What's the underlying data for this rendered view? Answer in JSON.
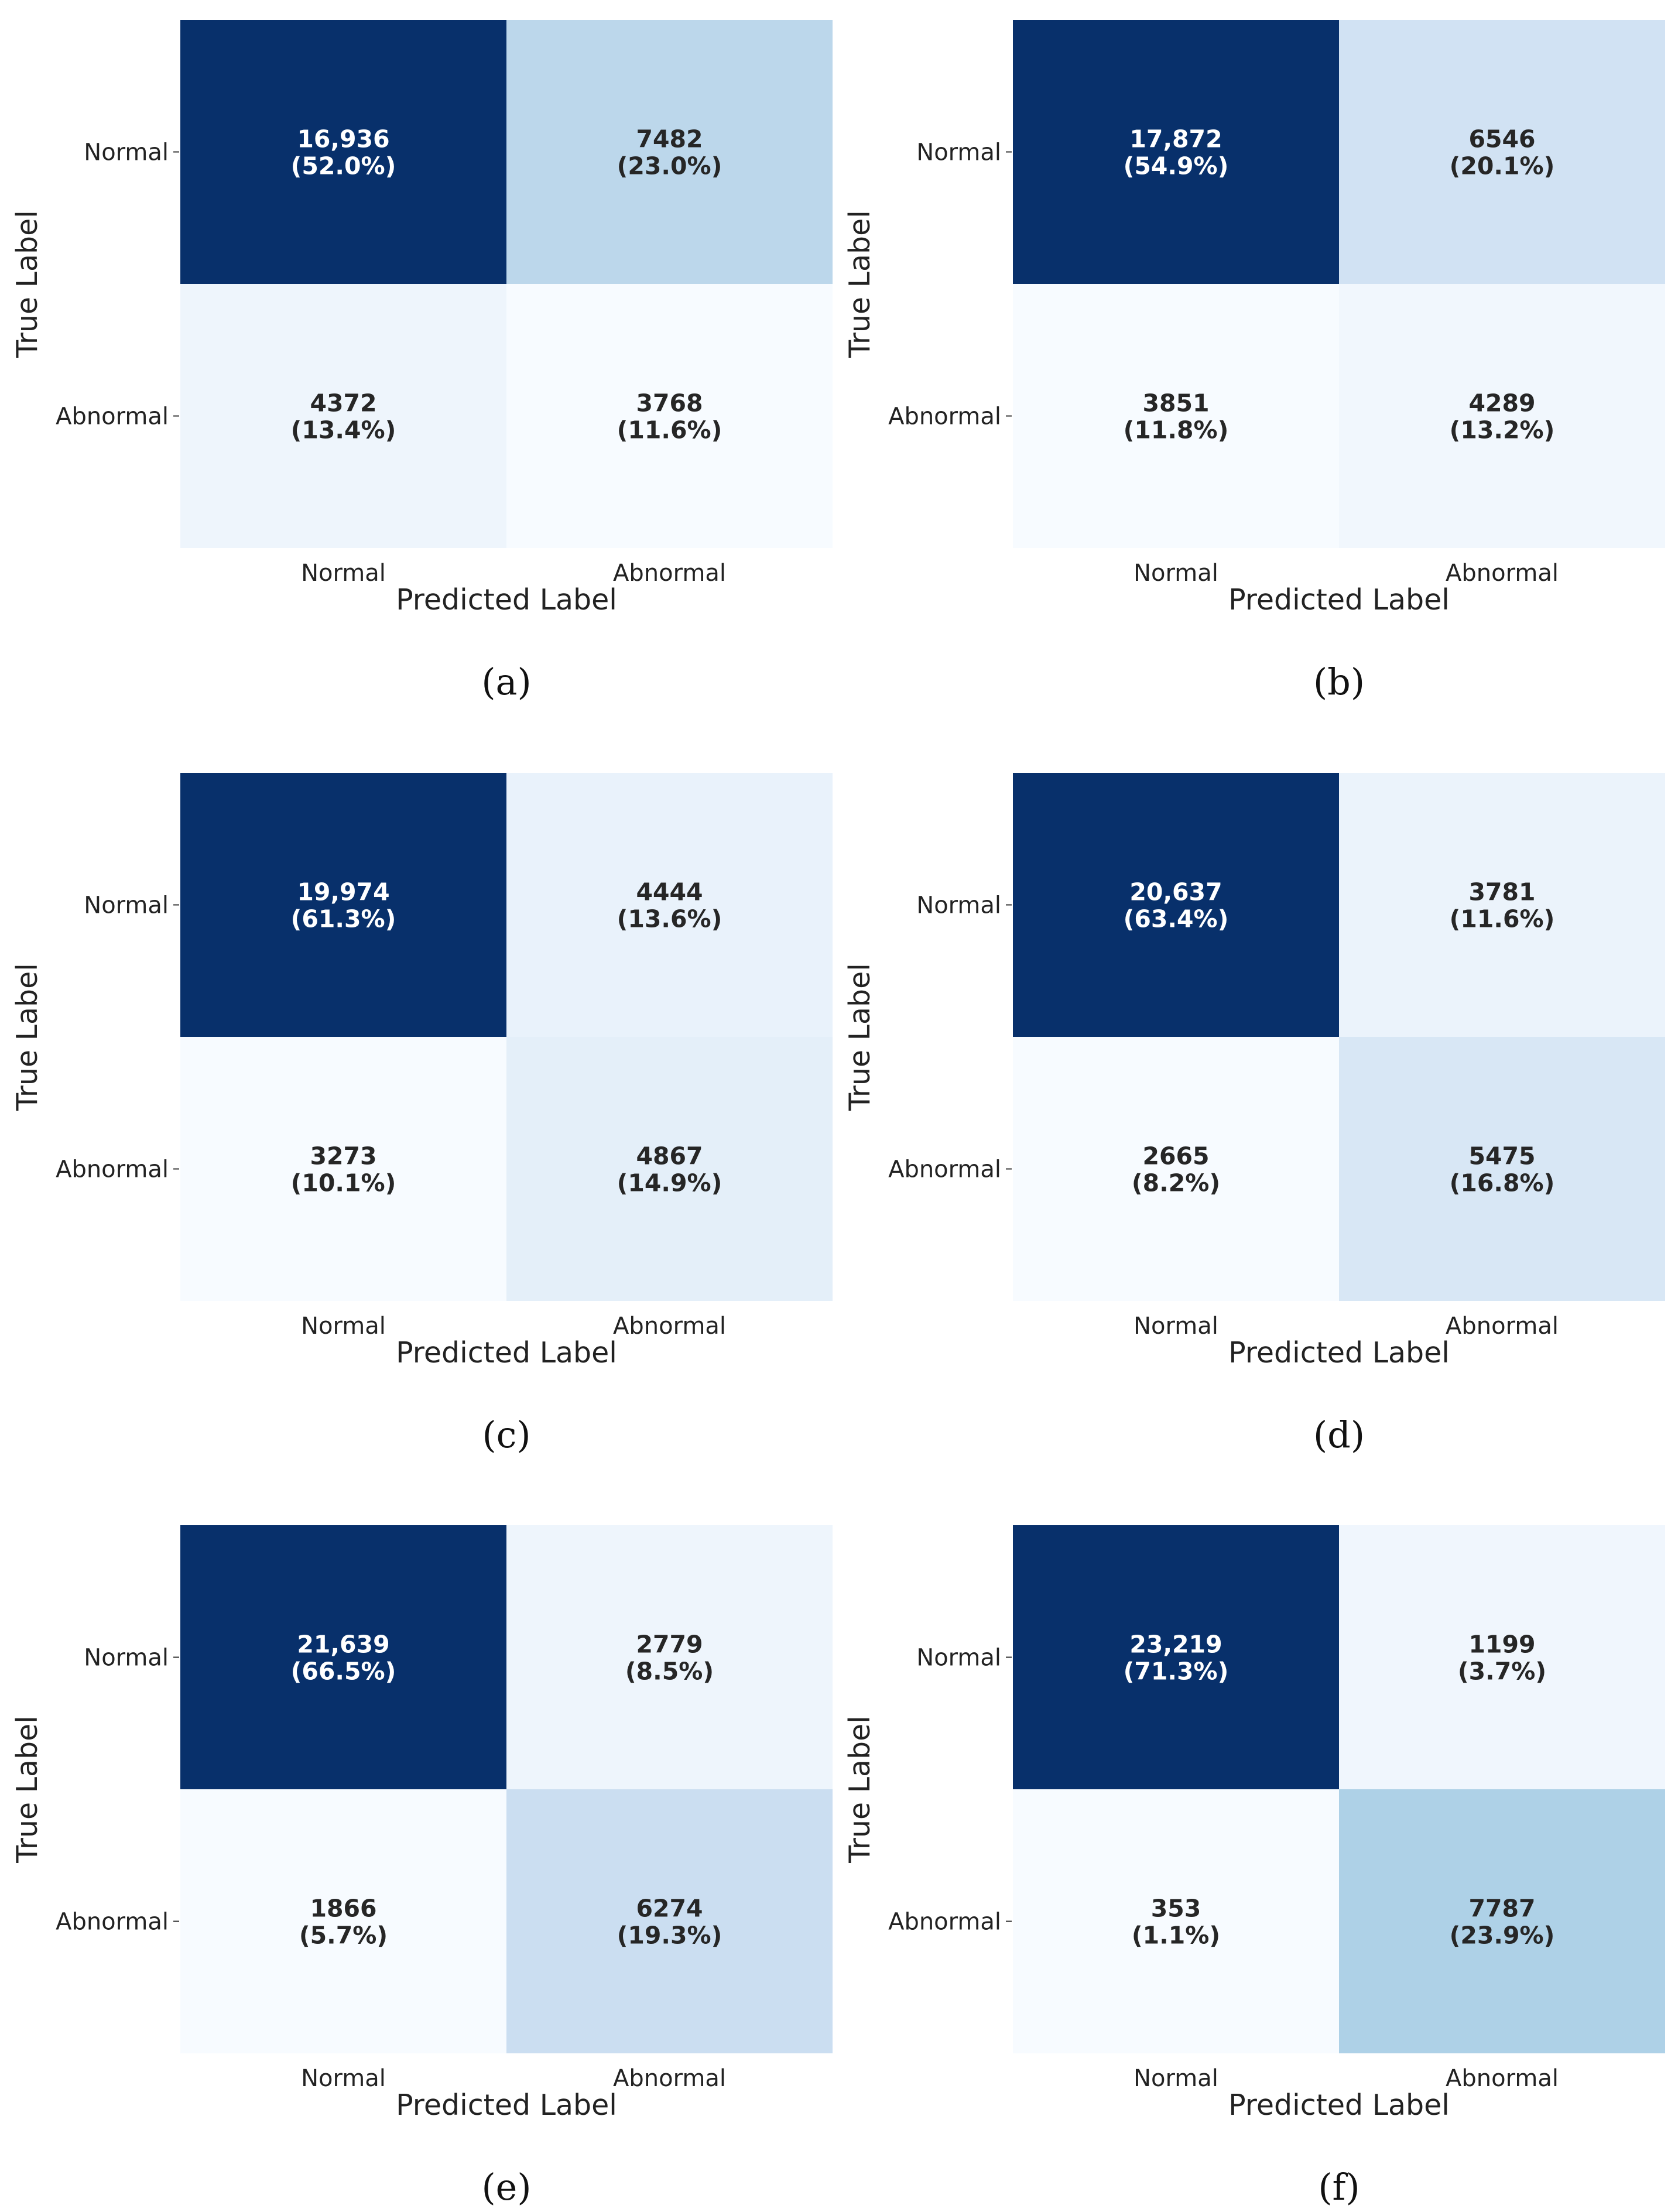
{
  "chart_data": [
    {
      "type": "heatmap",
      "panel_label": "(a)",
      "xlabel": "Predicted Label",
      "ylabel": "True Label",
      "x_categories": [
        "Normal",
        "Abnormal"
      ],
      "y_categories": [
        "Normal",
        "Abnormal"
      ],
      "values": [
        [
          16936,
          7482
        ],
        [
          4372,
          3768
        ]
      ],
      "cell_text": [
        [
          "16,936",
          "7482"
        ],
        [
          "4372",
          "3768"
        ]
      ],
      "percent_text": [
        [
          "(52.0%)",
          "(23.0%)"
        ],
        [
          "(13.4%)",
          "(11.6%)"
        ]
      ]
    },
    {
      "type": "heatmap",
      "panel_label": "(b)",
      "xlabel": "Predicted Label",
      "ylabel": "True Label",
      "x_categories": [
        "Normal",
        "Abnormal"
      ],
      "y_categories": [
        "Normal",
        "Abnormal"
      ],
      "values": [
        [
          17872,
          6546
        ],
        [
          3851,
          4289
        ]
      ],
      "cell_text": [
        [
          "17,872",
          "6546"
        ],
        [
          "3851",
          "4289"
        ]
      ],
      "percent_text": [
        [
          "(54.9%)",
          "(20.1%)"
        ],
        [
          "(11.8%)",
          "(13.2%)"
        ]
      ]
    },
    {
      "type": "heatmap",
      "panel_label": "(c)",
      "xlabel": "Predicted Label",
      "ylabel": "True Label",
      "x_categories": [
        "Normal",
        "Abnormal"
      ],
      "y_categories": [
        "Normal",
        "Abnormal"
      ],
      "values": [
        [
          19974,
          4444
        ],
        [
          3273,
          4867
        ]
      ],
      "cell_text": [
        [
          "19,974",
          "4444"
        ],
        [
          "3273",
          "4867"
        ]
      ],
      "percent_text": [
        [
          "(61.3%)",
          "(13.6%)"
        ],
        [
          "(10.1%)",
          "(14.9%)"
        ]
      ]
    },
    {
      "type": "heatmap",
      "panel_label": "(d)",
      "xlabel": "Predicted Label",
      "ylabel": "True Label",
      "x_categories": [
        "Normal",
        "Abnormal"
      ],
      "y_categories": [
        "Normal",
        "Abnormal"
      ],
      "values": [
        [
          20637,
          3781
        ],
        [
          2665,
          5475
        ]
      ],
      "cell_text": [
        [
          "20,637",
          "3781"
        ],
        [
          "2665",
          "5475"
        ]
      ],
      "percent_text": [
        [
          "(63.4%)",
          "(11.6%)"
        ],
        [
          "(8.2%)",
          "(16.8%)"
        ]
      ]
    },
    {
      "type": "heatmap",
      "panel_label": "(e)",
      "xlabel": "Predicted Label",
      "ylabel": "True Label",
      "x_categories": [
        "Normal",
        "Abnormal"
      ],
      "y_categories": [
        "Normal",
        "Abnormal"
      ],
      "values": [
        [
          21639,
          2779
        ],
        [
          1866,
          6274
        ]
      ],
      "cell_text": [
        [
          "21,639",
          "2779"
        ],
        [
          "1866",
          "6274"
        ]
      ],
      "percent_text": [
        [
          "(66.5%)",
          "(8.5%)"
        ],
        [
          "(5.7%)",
          "(19.3%)"
        ]
      ]
    },
    {
      "type": "heatmap",
      "panel_label": "(f)",
      "xlabel": "Predicted Label",
      "ylabel": "True Label",
      "x_categories": [
        "Normal",
        "Abnormal"
      ],
      "y_categories": [
        "Normal",
        "Abnormal"
      ],
      "values": [
        [
          23219,
          1199
        ],
        [
          353,
          7787
        ]
      ],
      "cell_text": [
        [
          "23,219",
          "1199"
        ],
        [
          "353",
          "7787"
        ]
      ],
      "percent_text": [
        [
          "(71.3%)",
          "(3.7%)"
        ],
        [
          "(1.1%)",
          "(23.9%)"
        ]
      ]
    }
  ],
  "colors": {
    "scale": [
      "#f7fbff",
      "#deebf7",
      "#c6dbef",
      "#9ecae1",
      "#6baed6",
      "#4292c6",
      "#2171b5",
      "#08519c",
      "#08306b"
    ],
    "text_on_dark": "#ffffff",
    "text_on_light": "#262626"
  }
}
